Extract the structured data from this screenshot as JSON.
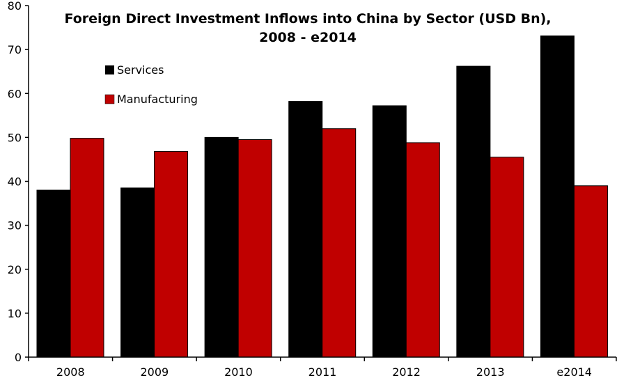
{
  "chart_data": {
    "type": "bar",
    "title_lines": [
      "Foreign Direct Investment Inflows into China by Sector (USD Bn),",
      "2008 - e2014"
    ],
    "categories": [
      "2008",
      "2009",
      "2010",
      "2011",
      "2012",
      "2013",
      "e2014"
    ],
    "series": [
      {
        "name": "Services",
        "color": "#000000",
        "values": [
          38,
          38.5,
          50,
          58.2,
          57.2,
          66.2,
          73.1
        ]
      },
      {
        "name": "Manufacturing",
        "color": "#c00000",
        "values": [
          49.8,
          46.8,
          49.5,
          52,
          48.8,
          45.5,
          39
        ]
      }
    ],
    "yticks": [
      0,
      10,
      20,
      30,
      40,
      50,
      60,
      70,
      80
    ],
    "ylim": [
      0,
      80
    ],
    "xlabel": "",
    "ylabel": "",
    "legend_position": "top-left"
  }
}
